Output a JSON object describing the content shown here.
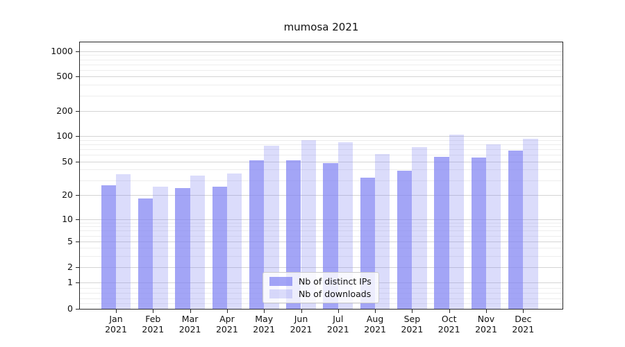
{
  "title": "mumosa 2021",
  "chart_data": {
    "type": "bar",
    "title": "mumosa 2021",
    "categories": [
      "Jan",
      "Feb",
      "Mar",
      "Apr",
      "May",
      "Jun",
      "Jul",
      "Aug",
      "Sep",
      "Oct",
      "Nov",
      "Dec"
    ],
    "year": "2021",
    "series": [
      {
        "name": "Nb of distinct IPs",
        "values": [
          26,
          18,
          24,
          25,
          51,
          51,
          48,
          32,
          39,
          57,
          56,
          67
        ],
        "alpha": 0.72
      },
      {
        "name": "Nb of downloads",
        "values": [
          35,
          25,
          34,
          36,
          77,
          90,
          84,
          61,
          74,
          103,
          79,
          92
        ],
        "alpha": 0.28
      }
    ],
    "yticks": [
      0,
      1,
      2,
      5,
      10,
      20,
      50,
      100,
      200,
      500,
      1000
    ],
    "yscale": "symlog",
    "ylim": [
      0,
      1280
    ],
    "grid": "horizontal, major and minor log gridlines",
    "legend_position": "lower center"
  },
  "colors": {
    "bar_base": "#7f82f0",
    "bar_ips_rendered": "#a6a9f4",
    "bar_downloads_rendered": "#dcddfb",
    "grid_major": "#d4d4d4",
    "grid_minor": "#ededed",
    "spine": "#262626",
    "background": "#ffffff",
    "legend_border": "#cccccc"
  }
}
